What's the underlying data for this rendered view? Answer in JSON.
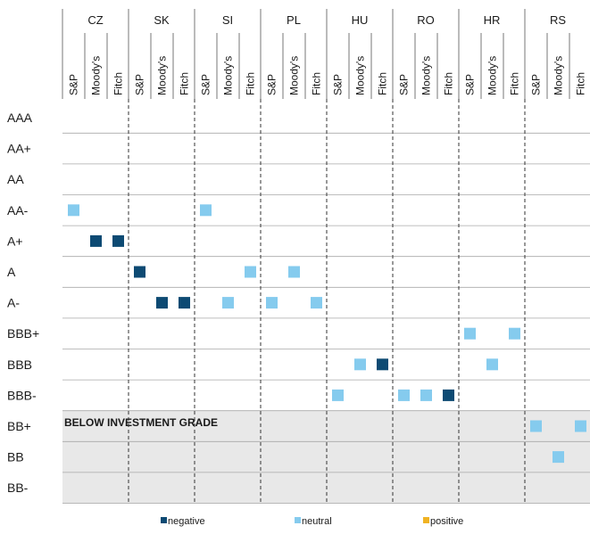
{
  "chart_data": {
    "type": "scatter",
    "x_groups": [
      "CZ",
      "SK",
      "SI",
      "PL",
      "HU",
      "RO",
      "HR",
      "RS"
    ],
    "agencies": [
      "S&P",
      "Moody's",
      "Fitch"
    ],
    "y_categories": [
      "AAA",
      "AA+",
      "AA",
      "AA-",
      "A+",
      "A",
      "A-",
      "BBB+",
      "BBB",
      "BBB-",
      "BB+",
      "BB",
      "BB-"
    ],
    "band_label": "BELOW INVESTMENT GRADE",
    "legend": [
      {
        "key": "negative",
        "label": "negative",
        "color": "#0d4a73"
      },
      {
        "key": "neutral",
        "label": "neutral",
        "color": "#85cbee"
      },
      {
        "key": "positive",
        "label": "positive",
        "color": "#f0b323"
      }
    ],
    "points": [
      {
        "country": "CZ",
        "agency": "S&P",
        "rating": "AA-",
        "outlook": "neutral"
      },
      {
        "country": "CZ",
        "agency": "Moody's",
        "rating": "A+",
        "outlook": "negative"
      },
      {
        "country": "CZ",
        "agency": "Fitch",
        "rating": "A+",
        "outlook": "negative"
      },
      {
        "country": "SK",
        "agency": "S&P",
        "rating": "A",
        "outlook": "negative"
      },
      {
        "country": "SK",
        "agency": "Moody's",
        "rating": "A-",
        "outlook": "negative"
      },
      {
        "country": "SK",
        "agency": "Fitch",
        "rating": "A-",
        "outlook": "negative"
      },
      {
        "country": "SI",
        "agency": "S&P",
        "rating": "AA-",
        "outlook": "neutral"
      },
      {
        "country": "SI",
        "agency": "Moody's",
        "rating": "A-",
        "outlook": "neutral"
      },
      {
        "country": "SI",
        "agency": "Fitch",
        "rating": "A",
        "outlook": "neutral"
      },
      {
        "country": "PL",
        "agency": "S&P",
        "rating": "A-",
        "outlook": "neutral"
      },
      {
        "country": "PL",
        "agency": "Moody's",
        "rating": "A",
        "outlook": "neutral"
      },
      {
        "country": "PL",
        "agency": "Fitch",
        "rating": "A-",
        "outlook": "neutral"
      },
      {
        "country": "HU",
        "agency": "S&P",
        "rating": "BBB-",
        "outlook": "neutral"
      },
      {
        "country": "HU",
        "agency": "Moody's",
        "rating": "BBB",
        "outlook": "neutral"
      },
      {
        "country": "HU",
        "agency": "Fitch",
        "rating": "BBB",
        "outlook": "negative"
      },
      {
        "country": "RO",
        "agency": "S&P",
        "rating": "BBB-",
        "outlook": "neutral"
      },
      {
        "country": "RO",
        "agency": "Moody's",
        "rating": "BBB-",
        "outlook": "neutral"
      },
      {
        "country": "RO",
        "agency": "Fitch",
        "rating": "BBB-",
        "outlook": "negative"
      },
      {
        "country": "HR",
        "agency": "S&P",
        "rating": "BBB+",
        "outlook": "neutral"
      },
      {
        "country": "HR",
        "agency": "Moody's",
        "rating": "BBB",
        "outlook": "neutral"
      },
      {
        "country": "HR",
        "agency": "Fitch",
        "rating": "BBB+",
        "outlook": "neutral"
      },
      {
        "country": "RS",
        "agency": "S&P",
        "rating": "BB+",
        "outlook": "neutral"
      },
      {
        "country": "RS",
        "agency": "Moody's",
        "rating": "BB",
        "outlook": "neutral"
      },
      {
        "country": "RS",
        "agency": "Fitch",
        "rating": "BB+",
        "outlook": "neutral"
      }
    ]
  }
}
